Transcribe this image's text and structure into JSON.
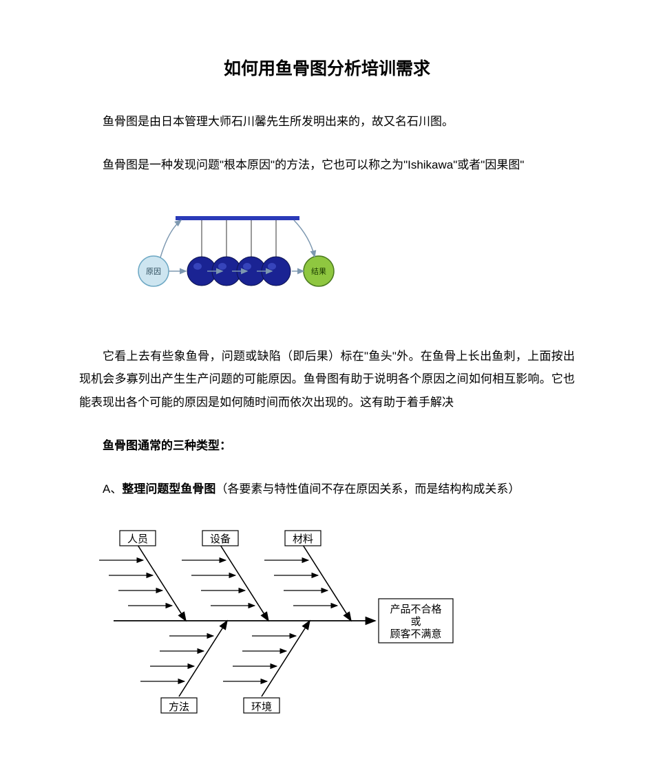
{
  "title": "如何用鱼骨图分析培训需求",
  "para1": "鱼骨图是由日本管理大师石川馨先生所发明出来的，故又名石川图。",
  "para2": "鱼骨图是一种发现问题\"根本原因\"的方法，它也可以称之为\"Ishikawa\"或者\"因果图\"",
  "para3": "它看上去有些象鱼骨，问题或缺陷（即后果）标在\"鱼头\"外。在鱼骨上长出鱼刺，上面按出现机会多寡列出产生生产问题的可能原因。鱼骨图有助于说明各个原因之间如何相互影响。它也能表现出各个可能的原因是如何随时间而依次出现的。这有助于着手解决",
  "section_heading": "鱼骨图通常的三种类型：",
  "typeA_prefix": "A、",
  "typeA_bold": "整理问题型鱼骨图",
  "typeA_rest": "（各要素与特性值间不存在原因关系，而是结构构成关系）",
  "cradle": {
    "left_label": "原因",
    "right_label": "结果",
    "bar_color": "#2a3ab8",
    "ball_fill": "#1a2393",
    "ball_stroke": "#0e1550",
    "left_fill": "#cde5f0",
    "left_stroke": "#6da8c4",
    "right_fill": "#8fc740",
    "right_stroke": "#4a7a1e",
    "arrow_color": "#7d98b0",
    "string_color": "#333333"
  },
  "fishbone": {
    "top_labels": [
      "人员",
      "设备",
      "材料"
    ],
    "bottom_labels": [
      "方法",
      "环境"
    ],
    "head_line1": "产品不合格",
    "head_line2": "或",
    "head_line3": "顾客不满意",
    "stroke": "#000000",
    "box_fill": "#ffffff",
    "font_size": 15
  }
}
